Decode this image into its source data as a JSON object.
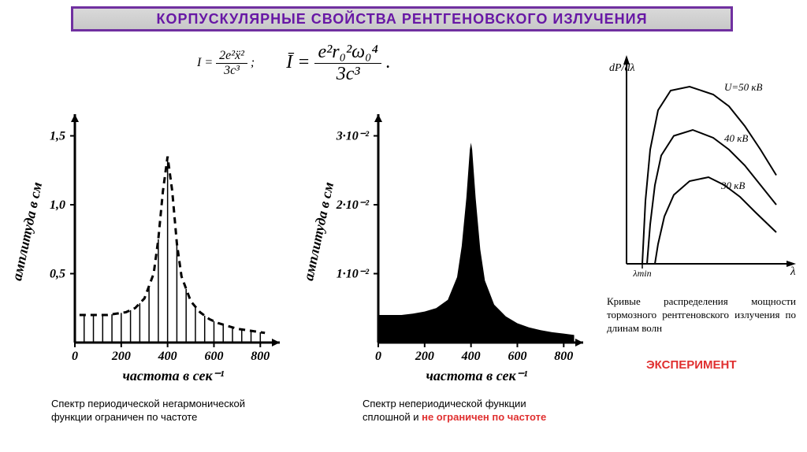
{
  "title": "КОРПУСКУЛЯРНЫЕ СВОЙСТВА РЕНТГЕНОВСКОГО ИЗЛУЧЕНИЯ",
  "title_color": "#6818a5",
  "title_border": "#7030a0",
  "title_bg_top": "#d9d9d9",
  "title_bg_bottom": "#c8c8c8",
  "formula1_lhs": "I =",
  "formula1_num": "2e²ẍ²",
  "formula1_den": "3c³",
  "formula1_suffix": ";",
  "formula2_lhs": "Ī =",
  "formula2_num": "e²r₀²ω₀⁴",
  "formula2_den": "3c³",
  "formula2_suffix": ".",
  "chart1": {
    "type": "line-dashed-with-bars",
    "ylabel": "амплитуда в см",
    "xlabel": "частота в сек⁻¹",
    "xticks": [
      "0",
      "200",
      "400",
      "600",
      "800"
    ],
    "yticks": [
      "0,5",
      "1,0",
      "1,5"
    ],
    "xlim": [
      0,
      850
    ],
    "ylim": [
      0,
      1.6
    ],
    "line_color": "#000000",
    "line_width": 3,
    "dash": "8 6",
    "bar_color": "#000000",
    "bar_width": 1.5,
    "points": [
      [
        20,
        0.2
      ],
      [
        60,
        0.2
      ],
      [
        100,
        0.2
      ],
      [
        140,
        0.2
      ],
      [
        180,
        0.21
      ],
      [
        220,
        0.22
      ],
      [
        260,
        0.25
      ],
      [
        300,
        0.32
      ],
      [
        340,
        0.5
      ],
      [
        360,
        0.75
      ],
      [
        380,
        1.1
      ],
      [
        400,
        1.35
      ],
      [
        420,
        1.1
      ],
      [
        440,
        0.72
      ],
      [
        460,
        0.48
      ],
      [
        500,
        0.3
      ],
      [
        540,
        0.22
      ],
      [
        580,
        0.17
      ],
      [
        620,
        0.14
      ],
      [
        660,
        0.12
      ],
      [
        700,
        0.1
      ],
      [
        740,
        0.09
      ],
      [
        780,
        0.08
      ],
      [
        820,
        0.07
      ]
    ],
    "bars_x": [
      40,
      80,
      120,
      160,
      200,
      240,
      280,
      320,
      360,
      400,
      440,
      480,
      520,
      560,
      600,
      640,
      680,
      720,
      760,
      800
    ]
  },
  "chart2": {
    "type": "area-filled",
    "ylabel": "амплитуда в см",
    "xlabel": "частота в сек⁻¹",
    "xticks": [
      "0",
      "200",
      "400",
      "600",
      "800"
    ],
    "yticks": [
      "1·10⁻²",
      "2·10⁻²",
      "3·10⁻²"
    ],
    "xlim": [
      0,
      850
    ],
    "ylim": [
      0,
      0.032
    ],
    "fill_color": "#000000",
    "points": [
      [
        5,
        0.004
      ],
      [
        50,
        0.004
      ],
      [
        100,
        0.004
      ],
      [
        150,
        0.0042
      ],
      [
        200,
        0.0045
      ],
      [
        250,
        0.005
      ],
      [
        300,
        0.0062
      ],
      [
        340,
        0.0095
      ],
      [
        360,
        0.014
      ],
      [
        380,
        0.021
      ],
      [
        395,
        0.028
      ],
      [
        400,
        0.029
      ],
      [
        405,
        0.028
      ],
      [
        420,
        0.021
      ],
      [
        440,
        0.0135
      ],
      [
        460,
        0.009
      ],
      [
        500,
        0.0055
      ],
      [
        550,
        0.0038
      ],
      [
        600,
        0.0028
      ],
      [
        650,
        0.0022
      ],
      [
        700,
        0.0018
      ],
      [
        750,
        0.0015
      ],
      [
        800,
        0.0013
      ],
      [
        845,
        0.0011
      ]
    ]
  },
  "chart3": {
    "type": "multi-line",
    "ylabel": "dP/dλ",
    "xlabel": "λ",
    "xlim": [
      0,
      100
    ],
    "ylim": [
      0,
      100
    ],
    "line_color": "#000000",
    "line_width": 2,
    "lambda_min_label": "λmin",
    "curves": [
      {
        "label": "U=50 кВ",
        "label_pos": [
          62,
          12
        ],
        "points": [
          [
            10,
            100
          ],
          [
            12,
            68
          ],
          [
            15,
            42
          ],
          [
            20,
            22
          ],
          [
            28,
            12
          ],
          [
            40,
            10
          ],
          [
            55,
            14
          ],
          [
            65,
            20
          ],
          [
            75,
            30
          ],
          [
            85,
            42
          ],
          [
            95,
            55
          ]
        ]
      },
      {
        "label": "40 кВ",
        "label_pos": [
          62,
          38
        ],
        "points": [
          [
            13,
            100
          ],
          [
            15,
            80
          ],
          [
            18,
            60
          ],
          [
            22,
            45
          ],
          [
            30,
            35
          ],
          [
            42,
            32
          ],
          [
            55,
            36
          ],
          [
            65,
            42
          ],
          [
            75,
            50
          ],
          [
            85,
            60
          ],
          [
            95,
            70
          ]
        ]
      },
      {
        "label": "30 кВ",
        "label_pos": [
          60,
          62
        ],
        "points": [
          [
            18,
            100
          ],
          [
            20,
            90
          ],
          [
            24,
            76
          ],
          [
            30,
            65
          ],
          [
            40,
            58
          ],
          [
            52,
            56
          ],
          [
            62,
            60
          ],
          [
            72,
            66
          ],
          [
            82,
            74
          ],
          [
            95,
            84
          ]
        ]
      }
    ]
  },
  "caption1_a": "Спектр периодической негармонической",
  "caption1_b": "функции ограничен по частоте",
  "caption2_a": "Спектр непериодической функции",
  "caption2_b_plain": "сплошной и ",
  "caption2_b_red": "не ограничен по частоте",
  "caption3": "Кривые распределения мощности тормозного рентгеновского излучения по длинам волн",
  "experiment": "ЭКСПЕРИМЕНТ",
  "colors": {
    "red": "#e03030",
    "black": "#000000",
    "purple": "#6818a5"
  }
}
